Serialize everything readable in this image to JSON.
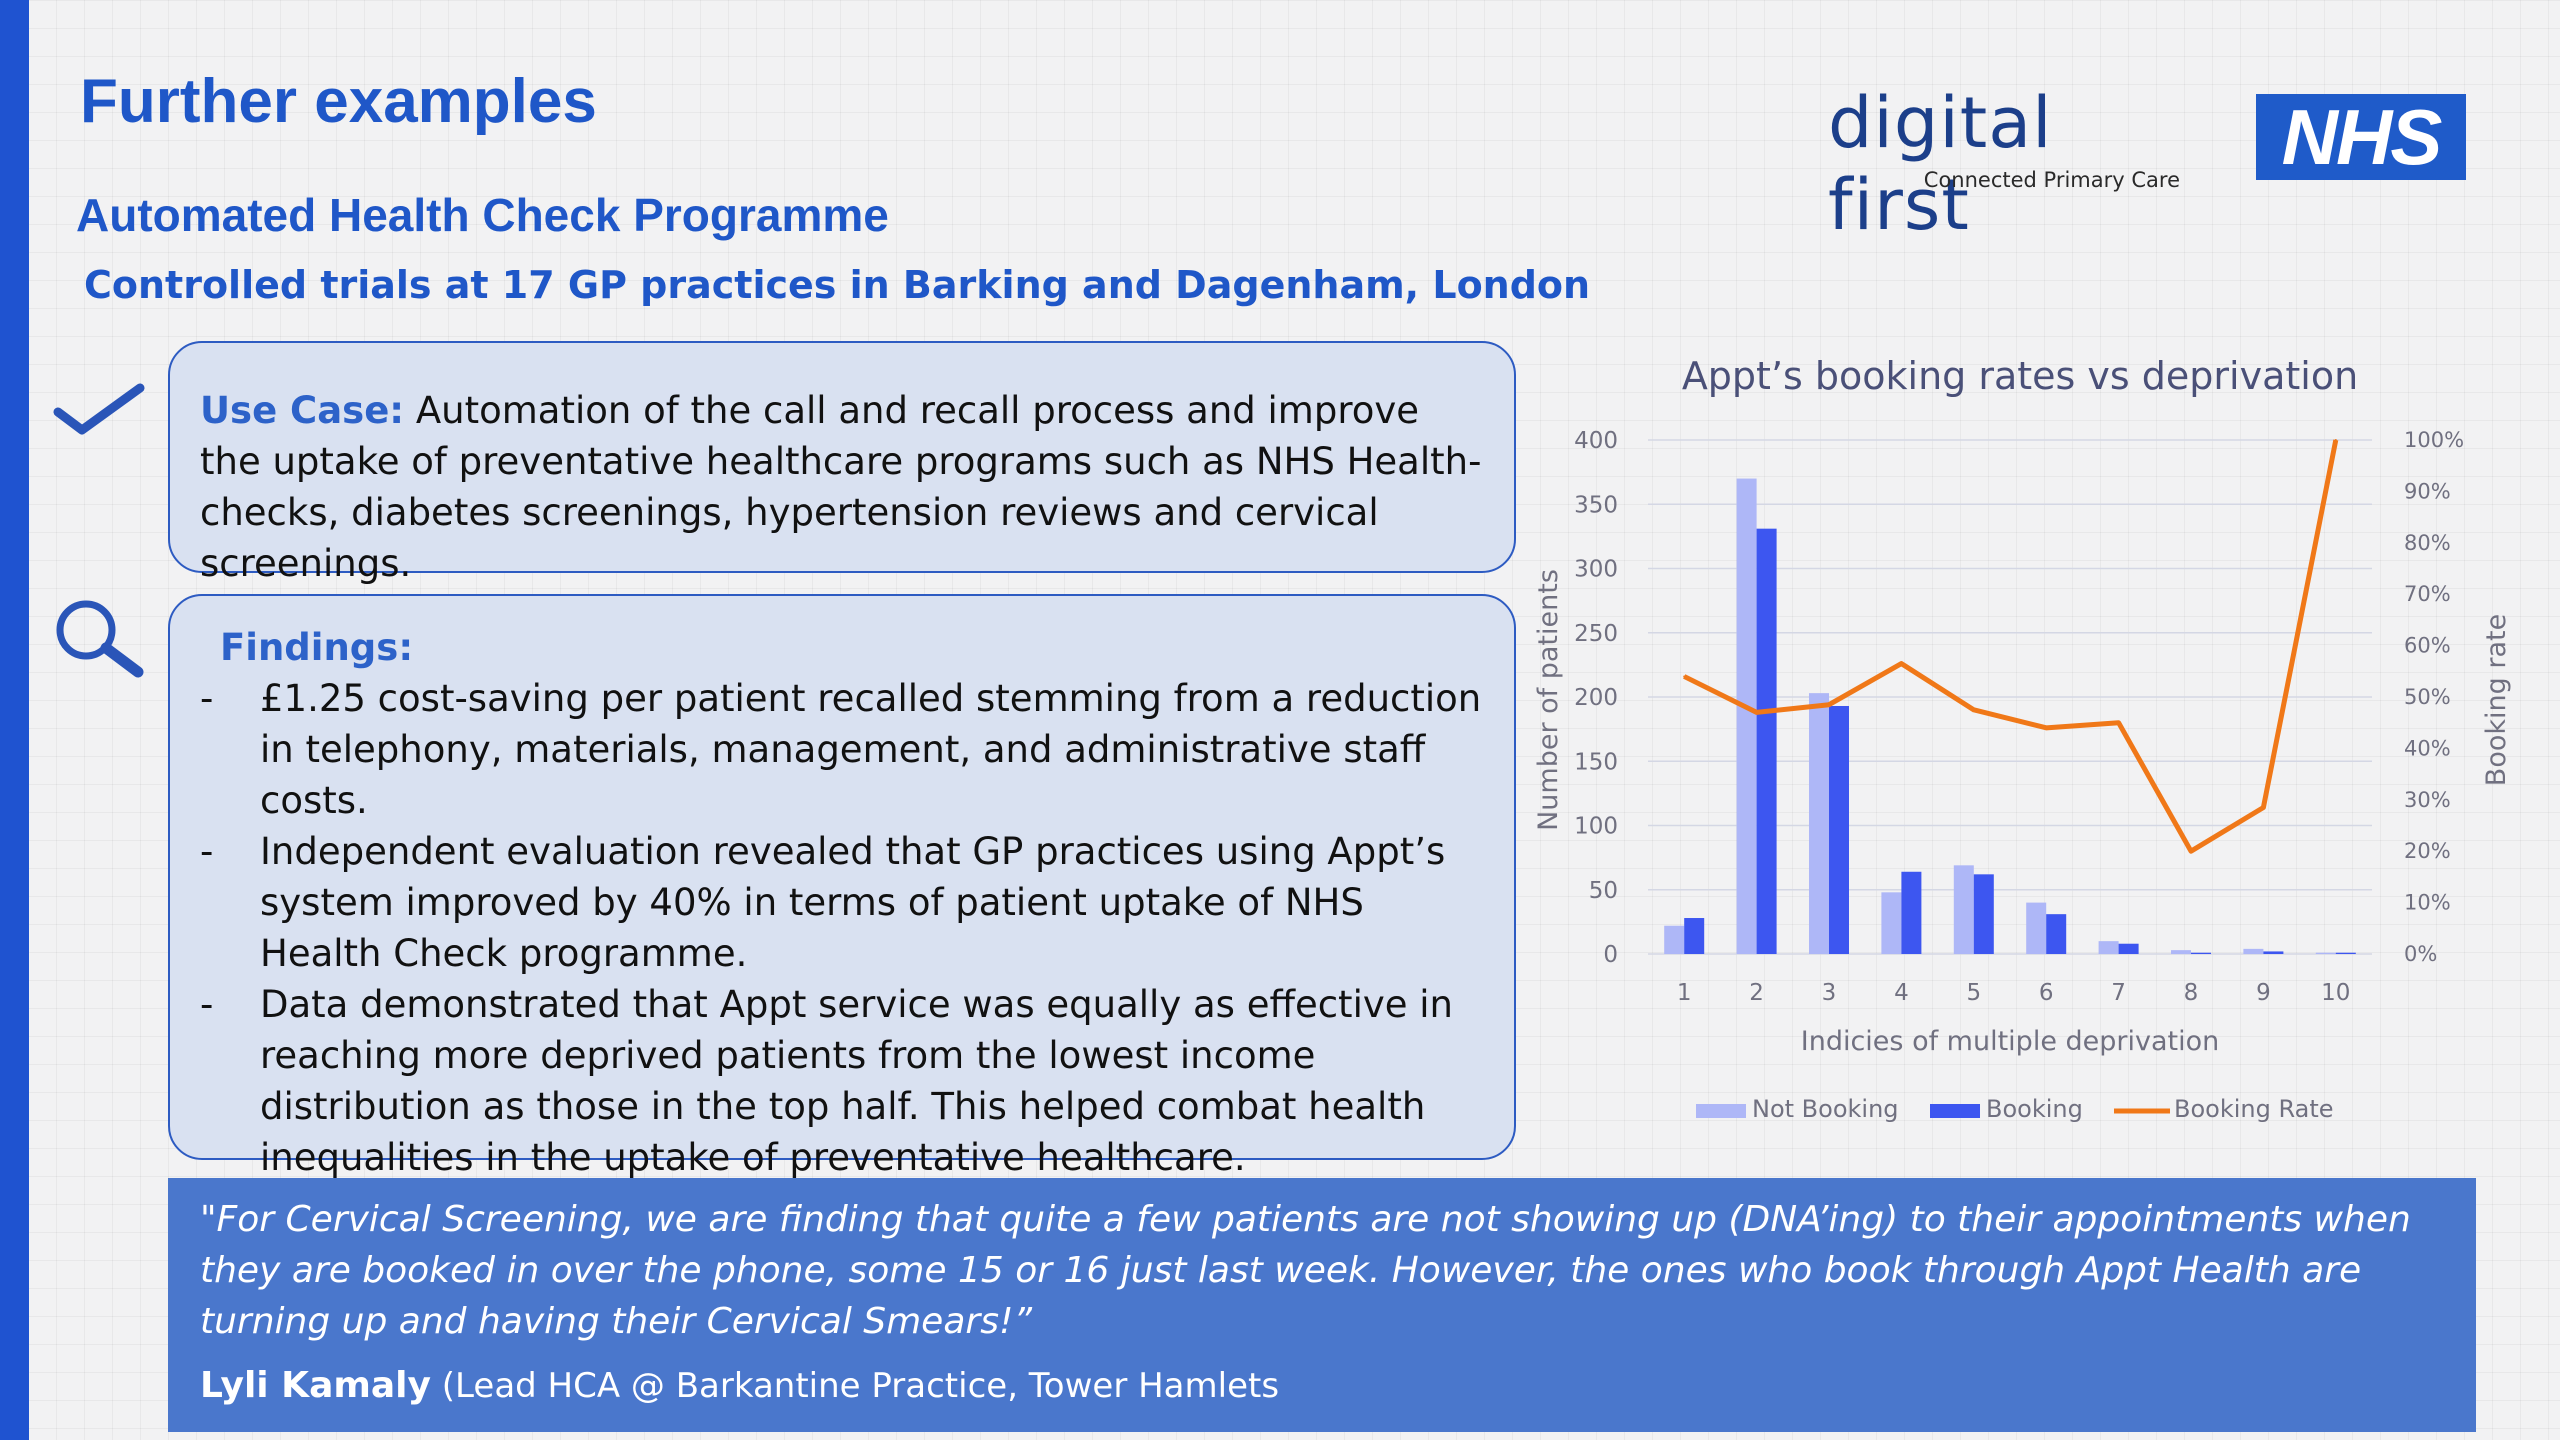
{
  "header": {
    "title": "Further examples",
    "subtitle": "Automated Health Check Programme",
    "context": "Controlled trials at 17 GP practices in Barking and Dagenham, London"
  },
  "brand": {
    "logo_text": "digital first",
    "logo_sub": "Connected Primary Care",
    "nhs_logo": "NHS"
  },
  "use_case": {
    "label": "Use Case:",
    "text": " Automation of the call and recall process and improve the uptake of preventative healthcare programs such as NHS Health-checks, diabetes screenings, hypertension reviews and cervical screenings."
  },
  "findings": {
    "title": "Findings:",
    "bullet_marker": "-",
    "items": [
      "£1.25 cost-saving per patient recalled stemming from a reduction in telephony, materials, management, and administrative staff costs.",
      "Independent evaluation revealed that GP practices using Appt’s system improved by 40% in terms of patient uptake of NHS Health Check programme.",
      "Data demonstrated that Appt service was equally as effective in reaching more deprived patients from the lowest income distribution as those in the top half. This helped combat health inequalities in the uptake of preventative healthcare."
    ]
  },
  "icons": {
    "use_case": "checkmark-icon",
    "findings": "search-icon"
  },
  "quote": {
    "text": "\"For Cervical Screening, we are finding that quite a few patients are not showing up (DNA’ing) to their appointments when they are booked in over the phone, some 15 or 16 just last week. However, the ones who book through Appt Health are turning up and having their Cervical Smears!”",
    "author_name": "Lyli Kamaly",
    "author_role": " (Lead HCA @ Barkantine Practice, Tower Hamlets"
  },
  "colors": {
    "accent": "#1f57c8",
    "not_booking": "#aeb7f7",
    "booking": "#3d56f0",
    "booking_rate": "#f07818",
    "quote_bg": "#4a77cc"
  },
  "chart_data": {
    "type": "bar",
    "title": "Appt’s booking rates vs deprivation",
    "xlabel": "Indicies of multiple deprivation",
    "ylabel": "Number of patients",
    "y2label": "Booking rate",
    "categories": [
      "1",
      "2",
      "3",
      "4",
      "5",
      "6",
      "7",
      "8",
      "9",
      "10"
    ],
    "ylim": [
      0,
      400
    ],
    "yticks": [
      "0",
      "50",
      "100",
      "150",
      "200",
      "250",
      "300",
      "350",
      "400"
    ],
    "y2lim": [
      0,
      100
    ],
    "y2ticks": [
      "0%",
      "10%",
      "20%",
      "30%",
      "40%",
      "50%",
      "60%",
      "70%",
      "80%",
      "90%",
      "100%"
    ],
    "grid": true,
    "legend_position": "bottom",
    "series": [
      {
        "name": "Not Booking",
        "type": "bar",
        "axis": "left",
        "values": [
          22,
          370,
          203,
          48,
          69,
          40,
          10,
          3,
          4,
          1
        ]
      },
      {
        "name": "Booking",
        "type": "bar",
        "axis": "left",
        "values": [
          28,
          331,
          193,
          64,
          62,
          31,
          8,
          1,
          2,
          1
        ]
      },
      {
        "name": "Booking Rate",
        "type": "line",
        "axis": "right",
        "values": [
          54,
          47,
          48.5,
          56.5,
          47.5,
          44,
          45,
          20,
          28.5,
          100
        ]
      }
    ]
  }
}
